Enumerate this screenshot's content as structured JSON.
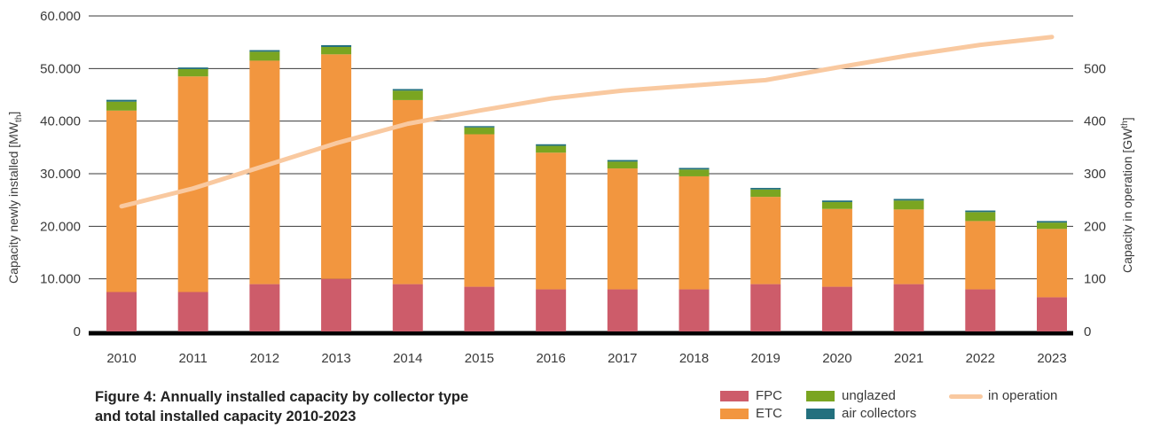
{
  "chart_data": {
    "type": "bar",
    "stacked": true,
    "categories": [
      "2010",
      "2011",
      "2012",
      "2013",
      "2014",
      "2015",
      "2016",
      "2017",
      "2018",
      "2019",
      "2020",
      "2021",
      "2022",
      "2023"
    ],
    "series": [
      {
        "name": "FPC",
        "color": "#cd5c6a",
        "values": [
          7500,
          7500,
          9000,
          10000,
          9000,
          8500,
          8000,
          8000,
          8000,
          9000,
          8500,
          9000,
          8000,
          6500
        ]
      },
      {
        "name": "ETC",
        "color": "#f2963f",
        "values": [
          34500,
          41000,
          42500,
          42700,
          35000,
          29000,
          26000,
          23000,
          21500,
          16600,
          14800,
          14200,
          13000,
          13000
        ]
      },
      {
        "name": "unglazed",
        "color": "#7aa521",
        "values": [
          1700,
          1400,
          1700,
          1400,
          1800,
          1300,
          1300,
          1300,
          1300,
          1400,
          1300,
          1700,
          1700,
          1200
        ]
      },
      {
        "name": "air collectors",
        "color": "#23707e",
        "values": [
          350,
          300,
          300,
          350,
          300,
          250,
          300,
          300,
          300,
          300,
          300,
          300,
          300,
          300
        ]
      },
      {
        "name": "in operation",
        "color": "#f9c9a0",
        "axis": "right",
        "type": "line",
        "values": [
          238,
          272,
          315,
          358,
          395,
          420,
          443,
          458,
          468,
          478,
          502,
          525,
          545,
          560
        ]
      }
    ],
    "ylabel": "Capacity newly installed [MWth]",
    "y2label": "Capacity in operation [GWth]",
    "ylim": [
      0,
      60000
    ],
    "y2lim": [
      0,
      600
    ],
    "yticks": [
      "0",
      "10.000",
      "20.000",
      "30.000",
      "40.000",
      "50.000",
      "60.000"
    ],
    "y2ticks": [
      "0",
      "100",
      "200",
      "300",
      "400",
      "500"
    ],
    "grid": true
  },
  "caption": {
    "line1": "Figure 4: Annually installed capacity by collector type",
    "line2": "and total installed capacity 2010-2023"
  },
  "legend": {
    "fpc": "FPC",
    "etc": "ETC",
    "unglazed": "unglazed",
    "air": "air collectors",
    "operation": "in operation"
  },
  "axis_labels": {
    "left_main": "Capacity newly installed [MW",
    "left_sub": "th",
    "left_end": "]",
    "right_main": "Capacity in operation [GW",
    "right_sup": "th",
    "right_end": "]"
  }
}
